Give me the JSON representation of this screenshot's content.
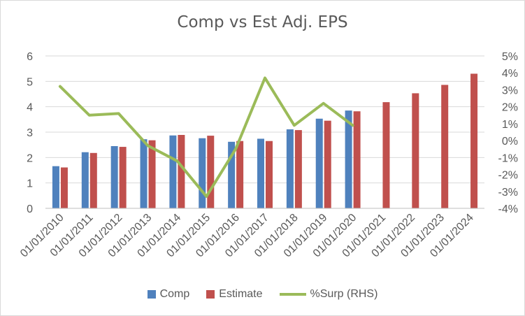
{
  "chart_data": {
    "type": "bar",
    "title": "Comp vs Est Adj. EPS",
    "categories": [
      "01/01/2010",
      "01/01/2011",
      "01/01/2012",
      "01/01/2013",
      "01/01/2014",
      "01/01/2015",
      "01/01/2016",
      "01/01/2017",
      "01/01/2018",
      "01/01/2019",
      "01/01/2020",
      "01/01/2021",
      "01/01/2022",
      "01/01/2023",
      "01/01/2024"
    ],
    "series": [
      {
        "name": "Comp",
        "type": "bar",
        "color": "#4f81bd",
        "axis": "left",
        "values": [
          1.66,
          2.21,
          2.45,
          2.72,
          2.87,
          2.76,
          2.62,
          2.74,
          3.11,
          3.53,
          3.85,
          null,
          null,
          null,
          null
        ]
      },
      {
        "name": "Estimate",
        "type": "bar",
        "color": "#c0504d",
        "axis": "left",
        "values": [
          1.61,
          2.18,
          2.42,
          2.68,
          2.89,
          2.86,
          2.65,
          2.65,
          3.08,
          3.45,
          3.82,
          4.18,
          4.53,
          4.86,
          5.3
        ]
      },
      {
        "name": "%Surp (RHS)",
        "type": "line",
        "color": "#9bbb59",
        "axis": "right",
        "values": [
          3.2,
          1.5,
          1.6,
          -0.3,
          -1.2,
          -3.3,
          -0.5,
          3.7,
          0.9,
          2.2,
          0.9,
          null,
          null,
          null,
          null
        ]
      }
    ],
    "ylim": [
      0,
      6
    ],
    "yticks": [
      "0",
      "1",
      "2",
      "3",
      "4",
      "5",
      "6"
    ],
    "y2lim": [
      -4,
      5
    ],
    "y2ticks": [
      "-4%",
      "-3%",
      "-2%",
      "-1%",
      "0%",
      "1%",
      "2%",
      "3%",
      "4%",
      "5%"
    ],
    "grid": true,
    "legend": "bottom"
  }
}
